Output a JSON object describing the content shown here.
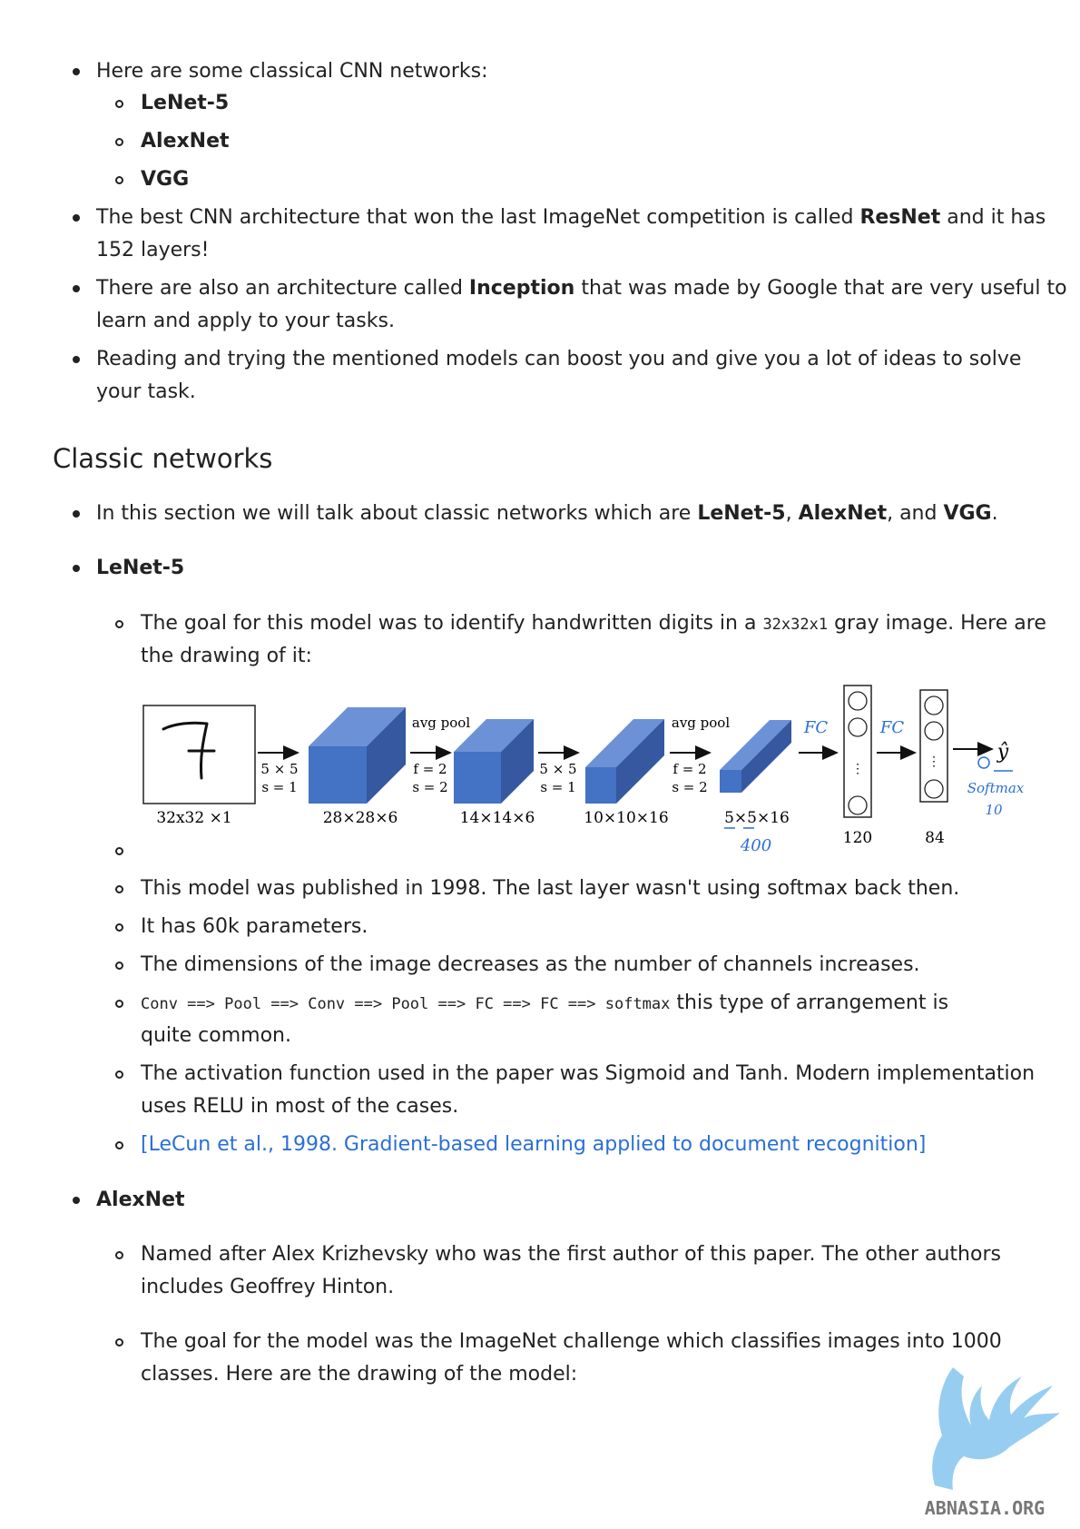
{
  "intro": {
    "bullet1": "Here are some classical CNN networks:",
    "sub_items": [
      "LeNet-5",
      "AlexNet",
      "VGG"
    ],
    "bullet2_pre": "The best CNN architecture that won the last ImageNet competition is called ",
    "bullet2_bold": "ResNet",
    "bullet2_post": " and it has",
    "bullet2_line2": "152 layers!",
    "bullet3_pre": "There are also an architecture called ",
    "bullet3_bold": "Inception",
    "bullet3_post": " that was made by Google that are very useful to",
    "bullet3_line2": "learn and apply to your tasks.",
    "bullet4_line1": "Reading and trying the mentioned models can boost you and give you a lot of ideas to solve",
    "bullet4_line2": "your task."
  },
  "section": {
    "title": "Classic networks",
    "intro_pre": "In this section we will talk about classic networks which are ",
    "intro_b1": "LeNet-5",
    "intro_sep1": ", ",
    "intro_b2": "AlexNet",
    "intro_sep2": ", and ",
    "intro_b3": "VGG",
    "intro_end": "."
  },
  "lenet": {
    "heading": "LeNet-5",
    "goal_pre": "The goal for this model was to identify handwritten digits in a ",
    "goal_code": "32x32x1",
    "goal_post": " gray image. Here are",
    "goal_line2": "the drawing of it:",
    "published": "This model was published in 1998. The last layer wasn't using softmax back then.",
    "params": "It has 60k parameters.",
    "dims": "The dimensions of the image decreases as the number of channels increases.",
    "arrangement_code": "Conv ==> Pool ==> Conv ==> Pool ==> FC ==> FC ==> softmax",
    "arrangement_post": " this type of arrangement is",
    "arrangement_line2": "quite common.",
    "activation_line1": "The activation function used in the paper was Sigmoid and Tanh. Modern implementation",
    "activation_line2": "uses RELU in most of the cases.",
    "reference": "[LeCun et al., 1998. Gradient-based learning applied to document recognition]"
  },
  "figure": {
    "input_digit": "7",
    "input_label": "32x32 ×1",
    "arrow1_line1": "5 × 5",
    "arrow1_line2": "s = 1",
    "vol1_label": "28×28×6",
    "pool1_title": "avg pool",
    "arrow2_line1": "f = 2",
    "arrow2_line2": "s = 2",
    "vol2_label": "14×14×6",
    "arrow3_line1": "5 × 5",
    "arrow3_line2": "s = 1",
    "vol3_label": "10×10×16",
    "pool2_title": "avg pool",
    "arrow4_line1": "f = 2",
    "arrow4_line2": "s = 2",
    "vol4_label": "5×5×16",
    "hand_400": "400",
    "hand_fc1": "FC",
    "hand_fc2": "FC",
    "fc1_label": "120",
    "fc2_label": "84",
    "ellipsis": "⋮",
    "output_symbol": "ŷ",
    "hand_softmax": "Softmax",
    "hand_10": "10"
  },
  "alexnet": {
    "heading": "AlexNet",
    "named_line1": "Named after Alex Krizhevsky who was the first author of this paper. The other authors",
    "named_line2": "includes Geoffrey Hinton.",
    "goal_line1": "The goal for the model was the ImageNet challenge which classifies images into 1000",
    "goal_line2": "classes. Here are the drawing of the model:"
  },
  "watermark": {
    "text": "ABNASIA.ORG"
  },
  "colors": {
    "text": "#222222",
    "link": "#2a6fd6",
    "cube_front": "#4472c4",
    "cube_top": "#6d91d6",
    "cube_side": "#3558a0",
    "handwriting": "#2a6fd6",
    "watermark_blue": "#8cc8ee"
  }
}
